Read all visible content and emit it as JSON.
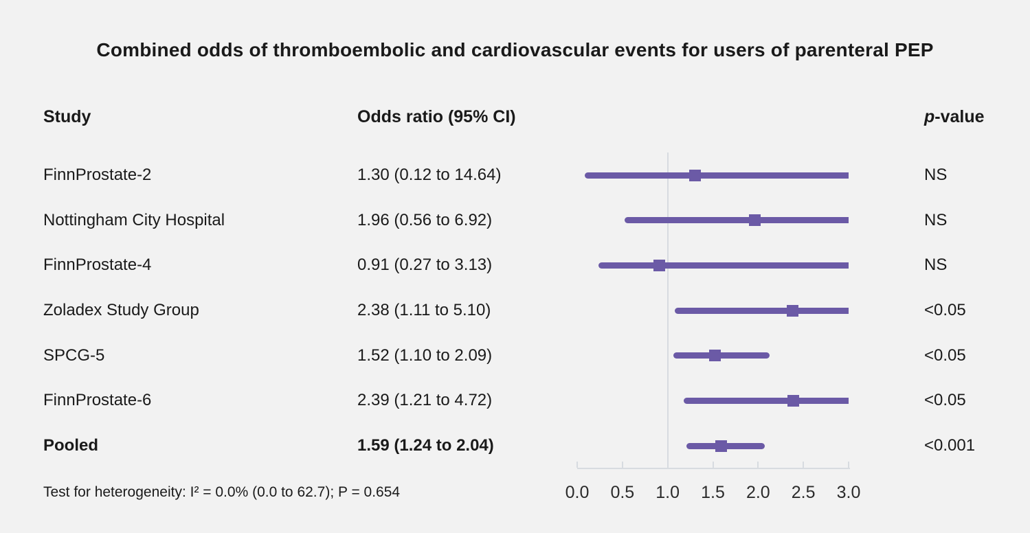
{
  "title": "Combined odds of thromboembolic and cardiovascular events for users of parenteral PEP",
  "columns": {
    "study": "Study",
    "odds_ratio": "Odds ratio (95% CI)",
    "p_italic": "p",
    "p_rest": "-value"
  },
  "footer": {
    "heterogeneity_test": "Test for heterogeneity: I² = 0.0% (0.0 to 62.7); P = 0.654"
  },
  "colors": {
    "background": "#f2f2f2",
    "ci_line": "#6b5aa6",
    "marker": "#6b5aa6",
    "reference_line": "#d7dbe0",
    "axis_line": "#d7dbe0",
    "text": "#1a1a1a"
  },
  "chart_data": {
    "type": "forest",
    "title": "Combined odds of thromboembolic and cardiovascular events for users of parenteral PEP",
    "xlabel": "",
    "ylabel": "",
    "x_axis": {
      "tick_labels": [
        "0.0",
        "0.5",
        "1.0",
        "1.5",
        "2.0",
        "2.5",
        "3.0"
      ],
      "tick_values": [
        0,
        0.5,
        1,
        1.5,
        2,
        2.5,
        3
      ],
      "range": [
        0,
        3
      ],
      "reference_line": 1.0
    },
    "rows": [
      {
        "study": "FinnProstate-2",
        "or": 1.3,
        "ci_low": 0.12,
        "ci_high": 14.64,
        "or_ci_label": "1.30 (0.12 to 14.64)",
        "p_value": "NS",
        "bold": false
      },
      {
        "study": "Nottingham City Hospital",
        "or": 1.96,
        "ci_low": 0.56,
        "ci_high": 6.92,
        "or_ci_label": "1.96 (0.56 to 6.92)",
        "p_value": "NS",
        "bold": false
      },
      {
        "study": "FinnProstate-4",
        "or": 0.91,
        "ci_low": 0.27,
        "ci_high": 3.13,
        "or_ci_label": "0.91 (0.27 to 3.13)",
        "p_value": "NS",
        "bold": false
      },
      {
        "study": "Zoladex Study Group",
        "or": 2.38,
        "ci_low": 1.11,
        "ci_high": 5.1,
        "or_ci_label": "2.38 (1.11 to 5.10)",
        "p_value": "<0.05",
        "bold": false
      },
      {
        "study": "SPCG-5",
        "or": 1.52,
        "ci_low": 1.1,
        "ci_high": 2.09,
        "or_ci_label": "1.52 (1.10 to 2.09)",
        "p_value": "<0.05",
        "bold": false
      },
      {
        "study": "FinnProstate-6",
        "or": 2.39,
        "ci_low": 1.21,
        "ci_high": 4.72,
        "or_ci_label": "2.39 (1.21 to 4.72)",
        "p_value": "<0.05",
        "bold": false
      },
      {
        "study": "Pooled",
        "or": 1.59,
        "ci_low": 1.24,
        "ci_high": 2.04,
        "or_ci_label": "1.59 (1.24 to 2.04)",
        "p_value": "<0.001",
        "bold": true
      }
    ]
  }
}
